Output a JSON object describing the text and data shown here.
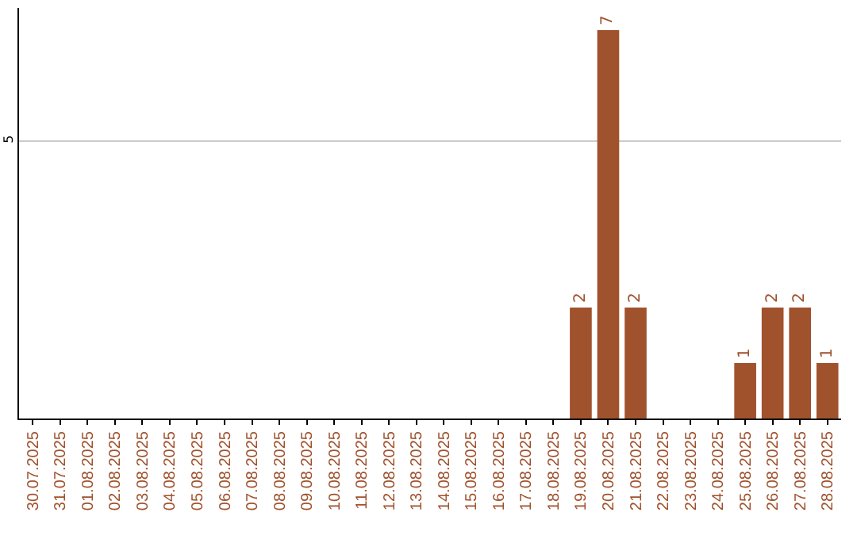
{
  "chart_data": {
    "type": "bar",
    "categories": [
      "30.07.2025",
      "31.07.2025",
      "01.08.2025",
      "02.08.2025",
      "03.08.2025",
      "04.08.2025",
      "05.08.2025",
      "06.08.2025",
      "07.08.2025",
      "08.08.2025",
      "09.08.2025",
      "10.08.2025",
      "11.08.2025",
      "12.08.2025",
      "13.08.2025",
      "14.08.2025",
      "15.08.2025",
      "16.08.2025",
      "17.08.2025",
      "18.08.2025",
      "19.08.2025",
      "20.08.2025",
      "21.08.2025",
      "22.08.2025",
      "23.08.2025",
      "24.08.2025",
      "25.08.2025",
      "26.08.2025",
      "27.08.2025",
      "28.08.2025"
    ],
    "values": [
      null,
      null,
      null,
      null,
      null,
      null,
      null,
      null,
      null,
      null,
      null,
      null,
      null,
      null,
      null,
      null,
      null,
      null,
      null,
      null,
      2,
      7,
      2,
      null,
      null,
      null,
      1,
      2,
      2,
      1
    ],
    "data_labels": true,
    "color": "#a0522d",
    "ylim": [
      0,
      7.4
    ],
    "yticks": [
      5
    ],
    "grid": "y"
  }
}
